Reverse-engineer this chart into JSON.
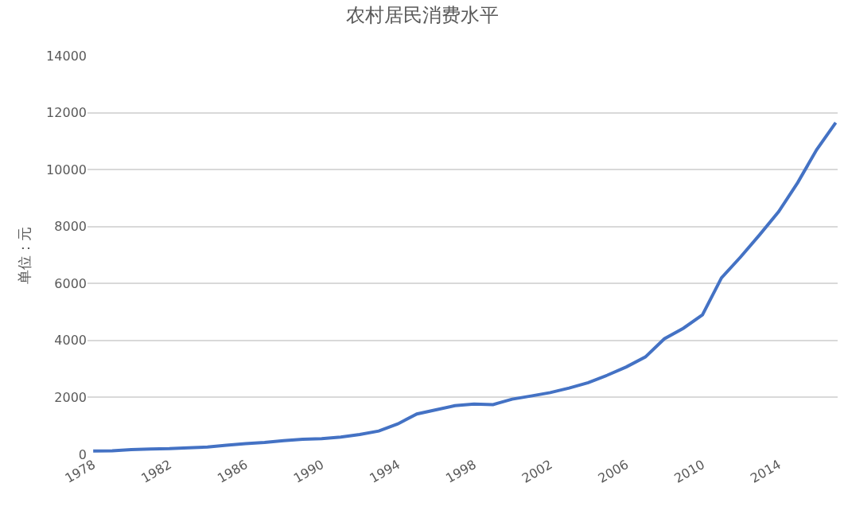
{
  "chart_data": {
    "type": "line",
    "title": "农村居民消费水平",
    "ylabel": "单位：元",
    "categories": [
      "1978",
      null,
      null,
      null,
      "1982",
      null,
      null,
      null,
      "1986",
      null,
      null,
      null,
      "1990",
      null,
      null,
      null,
      "1994",
      null,
      null,
      null,
      "1998",
      null,
      null,
      null,
      "2002",
      null,
      null,
      null,
      "2006",
      null,
      null,
      null,
      "2010",
      null,
      null,
      null,
      "2014",
      null,
      null,
      null
    ],
    "series": [
      {
        "color": "#4472c4",
        "values": [
          120,
          125,
          170,
          190,
          200,
          230,
          260,
          320,
          380,
          420,
          480,
          530,
          550,
          610,
          700,
          820,
          1070,
          1420,
          1565,
          1710,
          1770,
          1750,
          1940,
          2050,
          2170,
          2330,
          2520,
          2780,
          3070,
          3420,
          4060,
          4430,
          4900,
          6200,
          6930,
          7710,
          8520,
          9540,
          10700,
          11650
        ]
      }
    ],
    "ylim": [
      0,
      14000
    ],
    "yticks": [
      0,
      2000,
      4000,
      6000,
      8000,
      10000,
      12000,
      14000
    ],
    "grid": "y",
    "legend": false
  }
}
